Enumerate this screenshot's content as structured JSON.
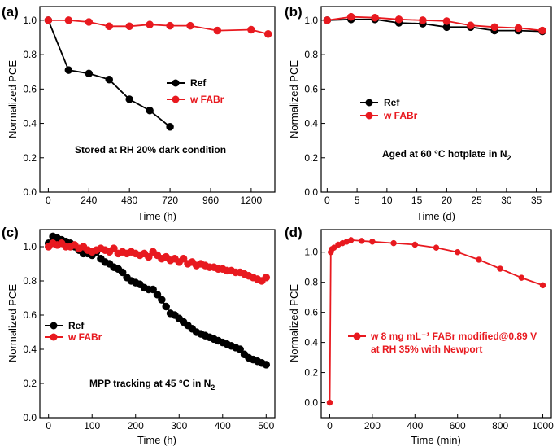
{
  "colors": {
    "ref": "#000000",
    "fabr": "#e8191f",
    "frame": "#000000"
  },
  "chart_data": [
    {
      "type": "line",
      "panel_label": "(a)",
      "xlabel": "Time (h)",
      "ylabel": "Normalized PCE",
      "xlim": [
        -50,
        1340
      ],
      "ylim": [
        0.0,
        1.08
      ],
      "xticks": [
        "0",
        "240",
        "480",
        "720",
        "960",
        "1200"
      ],
      "xtick_values": [
        0,
        240,
        480,
        720,
        960,
        1200
      ],
      "yticks": [
        "0.0",
        "0.2",
        "0.4",
        "0.6",
        "0.8",
        "1.0"
      ],
      "ytick_values": [
        0,
        0.2,
        0.4,
        0.6,
        0.8,
        1.0
      ],
      "legend_position": "center-right",
      "series": [
        {
          "name": "Ref",
          "color": "#000000",
          "x": [
            0,
            120,
            240,
            360,
            480,
            600,
            720
          ],
          "y": [
            1.0,
            0.71,
            0.69,
            0.655,
            0.54,
            0.475,
            0.38
          ]
        },
        {
          "name": "w FABr",
          "color": "#e8191f",
          "x": [
            0,
            120,
            240,
            360,
            480,
            600,
            720,
            840,
            1000,
            1200,
            1300
          ],
          "y": [
            1.0,
            1.0,
            0.99,
            0.965,
            0.965,
            0.975,
            0.968,
            0.968,
            0.94,
            0.945,
            0.92
          ]
        }
      ],
      "annotation": "Stored at RH 20% dark condition"
    },
    {
      "type": "line",
      "panel_label": "(b)",
      "xlabel": "Time (d)",
      "ylabel": "Normalized PCE",
      "xlim": [
        -1,
        37.5
      ],
      "ylim": [
        0.0,
        1.08
      ],
      "xticks": [
        "0",
        "5",
        "10",
        "15",
        "20",
        "25",
        "30",
        "35"
      ],
      "xtick_values": [
        0,
        5,
        10,
        15,
        20,
        25,
        30,
        35
      ],
      "yticks": [
        "0.0",
        "0.2",
        "0.4",
        "0.6",
        "0.8",
        "1.0"
      ],
      "ytick_values": [
        0,
        0.2,
        0.4,
        0.6,
        0.8,
        1.0
      ],
      "legend_position": "center-left",
      "series": [
        {
          "name": "Ref",
          "color": "#000000",
          "x": [
            0,
            4,
            8,
            12,
            16,
            20,
            24,
            28,
            32,
            36
          ],
          "y": [
            1.0,
            1.005,
            1.005,
            0.985,
            0.98,
            0.96,
            0.96,
            0.94,
            0.94,
            0.935
          ]
        },
        {
          "name": "w FABr",
          "color": "#e8191f",
          "x": [
            0,
            4,
            8,
            12,
            16,
            20,
            24,
            28,
            32,
            36
          ],
          "y": [
            1.0,
            1.02,
            1.015,
            1.005,
            1.0,
            0.995,
            0.97,
            0.96,
            0.955,
            0.94
          ]
        }
      ],
      "annotation_main": "Aged at 60 °C hotplate in N",
      "annotation_sub": "2"
    },
    {
      "type": "line",
      "panel_label": "(c)",
      "xlabel": "Time (h)",
      "ylabel": "Normalized PCE",
      "xlim": [
        -20,
        520
      ],
      "ylim": [
        0.0,
        1.1
      ],
      "xticks": [
        "0",
        "100",
        "200",
        "300",
        "400",
        "500"
      ],
      "xtick_values": [
        0,
        100,
        200,
        300,
        400,
        500
      ],
      "yticks": [
        "0.0",
        "0.2",
        "0.4",
        "0.6",
        "0.8",
        "1.0"
      ],
      "ytick_values": [
        0,
        0.2,
        0.4,
        0.6,
        0.8,
        1.0
      ],
      "legend_position": "center-left",
      "series": [
        {
          "name": "Ref",
          "color": "#000000",
          "x": [
            0,
            10,
            20,
            30,
            40,
            50,
            60,
            70,
            80,
            90,
            100,
            110,
            120,
            130,
            140,
            150,
            160,
            170,
            180,
            190,
            200,
            210,
            220,
            230,
            240,
            250,
            260,
            270,
            280,
            290,
            300,
            310,
            320,
            330,
            340,
            350,
            360,
            370,
            380,
            390,
            400,
            410,
            420,
            430,
            440,
            450,
            460,
            470,
            480,
            490,
            500
          ],
          "y": [
            1.02,
            1.06,
            1.05,
            1.04,
            1.03,
            1.02,
            1.0,
            0.98,
            0.96,
            0.96,
            0.95,
            0.97,
            0.93,
            0.91,
            0.9,
            0.88,
            0.87,
            0.85,
            0.82,
            0.8,
            0.79,
            0.78,
            0.76,
            0.75,
            0.75,
            0.72,
            0.69,
            0.65,
            0.61,
            0.6,
            0.58,
            0.56,
            0.54,
            0.52,
            0.5,
            0.49,
            0.48,
            0.47,
            0.46,
            0.45,
            0.44,
            0.43,
            0.42,
            0.41,
            0.4,
            0.37,
            0.35,
            0.34,
            0.33,
            0.32,
            0.31
          ]
        },
        {
          "name": "w FABr",
          "color": "#e8191f",
          "x": [
            0,
            10,
            20,
            30,
            40,
            50,
            60,
            70,
            80,
            90,
            100,
            110,
            120,
            130,
            140,
            150,
            160,
            170,
            180,
            190,
            200,
            210,
            220,
            230,
            240,
            250,
            260,
            270,
            280,
            290,
            300,
            310,
            320,
            330,
            340,
            350,
            360,
            370,
            380,
            390,
            400,
            410,
            420,
            430,
            440,
            450,
            460,
            470,
            480,
            490,
            500
          ],
          "y": [
            1.0,
            1.02,
            1.01,
            1.02,
            1.0,
            1.0,
            1.01,
            0.99,
            1.0,
            0.98,
            0.97,
            0.98,
            0.99,
            0.98,
            0.97,
            0.99,
            0.96,
            0.97,
            0.96,
            0.97,
            0.96,
            0.95,
            0.96,
            0.94,
            0.97,
            0.95,
            0.93,
            0.94,
            0.92,
            0.93,
            0.91,
            0.93,
            0.9,
            0.91,
            0.89,
            0.9,
            0.89,
            0.88,
            0.88,
            0.87,
            0.87,
            0.86,
            0.86,
            0.85,
            0.85,
            0.84,
            0.83,
            0.82,
            0.81,
            0.8,
            0.82
          ]
        }
      ],
      "annotation_main": "MPP tracking at 45 °C in N",
      "annotation_sub": "2"
    },
    {
      "type": "line",
      "panel_label": "(d)",
      "xlabel": "Time (min)",
      "ylabel": "Normalized PCE",
      "xlim": [
        -40,
        1040
      ],
      "ylim": [
        -0.1,
        1.15
      ],
      "xticks": [
        "0",
        "200",
        "400",
        "600",
        "800",
        "1000"
      ],
      "xtick_values": [
        0,
        200,
        400,
        600,
        800,
        1000
      ],
      "yticks": [
        "0.0",
        "0.2",
        "0.4",
        "0.6",
        "0.8",
        "1.0"
      ],
      "ytick_values": [
        0,
        0.2,
        0.4,
        0.6,
        0.8,
        1.0
      ],
      "legend_position": "center-right",
      "series": [
        {
          "name": "w 8 mg mL⁻¹ FABr modified@0.89 V",
          "color": "#e8191f",
          "x": [
            0,
            5,
            10,
            20,
            40,
            60,
            80,
            100,
            150,
            200,
            300,
            400,
            500,
            600,
            700,
            800,
            900,
            1000
          ],
          "y": [
            0.0,
            1.0,
            1.02,
            1.03,
            1.05,
            1.06,
            1.07,
            1.08,
            1.075,
            1.07,
            1.06,
            1.05,
            1.03,
            1.0,
            0.95,
            0.89,
            0.83,
            0.78
          ]
        }
      ],
      "legend_line2": "at RH 35% with Newport"
    }
  ]
}
